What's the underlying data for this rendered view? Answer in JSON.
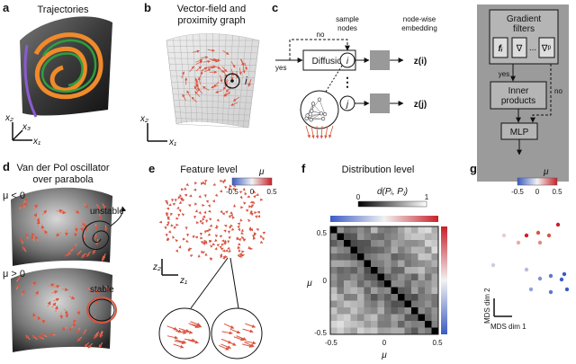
{
  "panel_a": {
    "letter": "a",
    "title": "Trajectories",
    "axis_labels": [
      "x₂",
      "x₃",
      "x₁"
    ]
  },
  "panel_b": {
    "letter": "b",
    "title_lines": [
      "Vector-field and",
      "proximity graph"
    ],
    "node_label": "i",
    "axis_labels": [
      "x₂",
      "x₁"
    ]
  },
  "panel_c": {
    "letter": "c",
    "sample_label": [
      "sample",
      "nodes"
    ],
    "embedding_label": [
      "node-wise",
      "embedding"
    ],
    "no": "no",
    "yes": "yes",
    "diffusion": "Diffusion",
    "nodes": [
      "i",
      "j"
    ],
    "ellipsis": "⋮",
    "embeddings": [
      "z(i)",
      "z(j)"
    ],
    "filters_title": [
      "Gradient",
      "filters"
    ],
    "filters": [
      "fᵢ",
      "∇",
      "...",
      "∇ᵖ"
    ],
    "yes_inner": "yes",
    "inner_products": [
      "Inner",
      "products"
    ],
    "no_inner": "no",
    "mlp": "MLP"
  },
  "panel_d": {
    "letter": "d",
    "title_lines": [
      "Van der Pol oscillator",
      "over parabola"
    ],
    "top_label": "μ < 0",
    "top_state": "unstable",
    "bottom_label": "μ > 0",
    "bottom_state": "stable"
  },
  "panel_e": {
    "letter": "e",
    "title": "Feature level",
    "colorbar_label": "μ",
    "colorbar_ticks": [
      "-0.5",
      "0",
      "0.5"
    ],
    "axis_labels": [
      "z₂",
      "z₁"
    ]
  },
  "panel_f": {
    "letter": "f",
    "title": "Distribution level",
    "colorbar_label": "d(Pᵢ, Pⱼ)",
    "colorbar_ticks": [
      "0",
      "1"
    ],
    "yticks": [
      "0.5",
      "0",
      "-0.5"
    ],
    "ylabel": "μ",
    "xticks": [
      "-0.5",
      "0",
      "0.5"
    ],
    "xlabel": "μ"
  },
  "panel_g": {
    "letter": "g",
    "colorbar_label": "μ",
    "colorbar_ticks": [
      "-0.5",
      "0",
      "0.5"
    ],
    "axis_labels": [
      "MDS dim 2",
      "MDS dim 1"
    ]
  }
}
